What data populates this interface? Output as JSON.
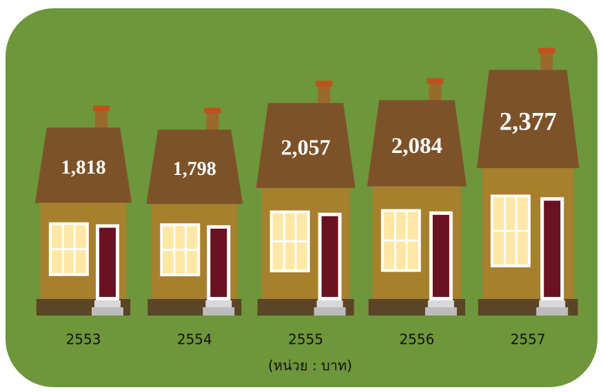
{
  "chart_data": {
    "type": "house",
    "categories": [
      "2553",
      "2554",
      "2555",
      "2556",
      "2557"
    ],
    "values": [
      1818,
      1798,
      2057,
      2084,
      2377
    ],
    "value_labels": [
      "1,818",
      "1,798",
      "2,057",
      "2,084",
      "2,377"
    ],
    "unit_label": "(หน่วย : บาท)"
  }
}
